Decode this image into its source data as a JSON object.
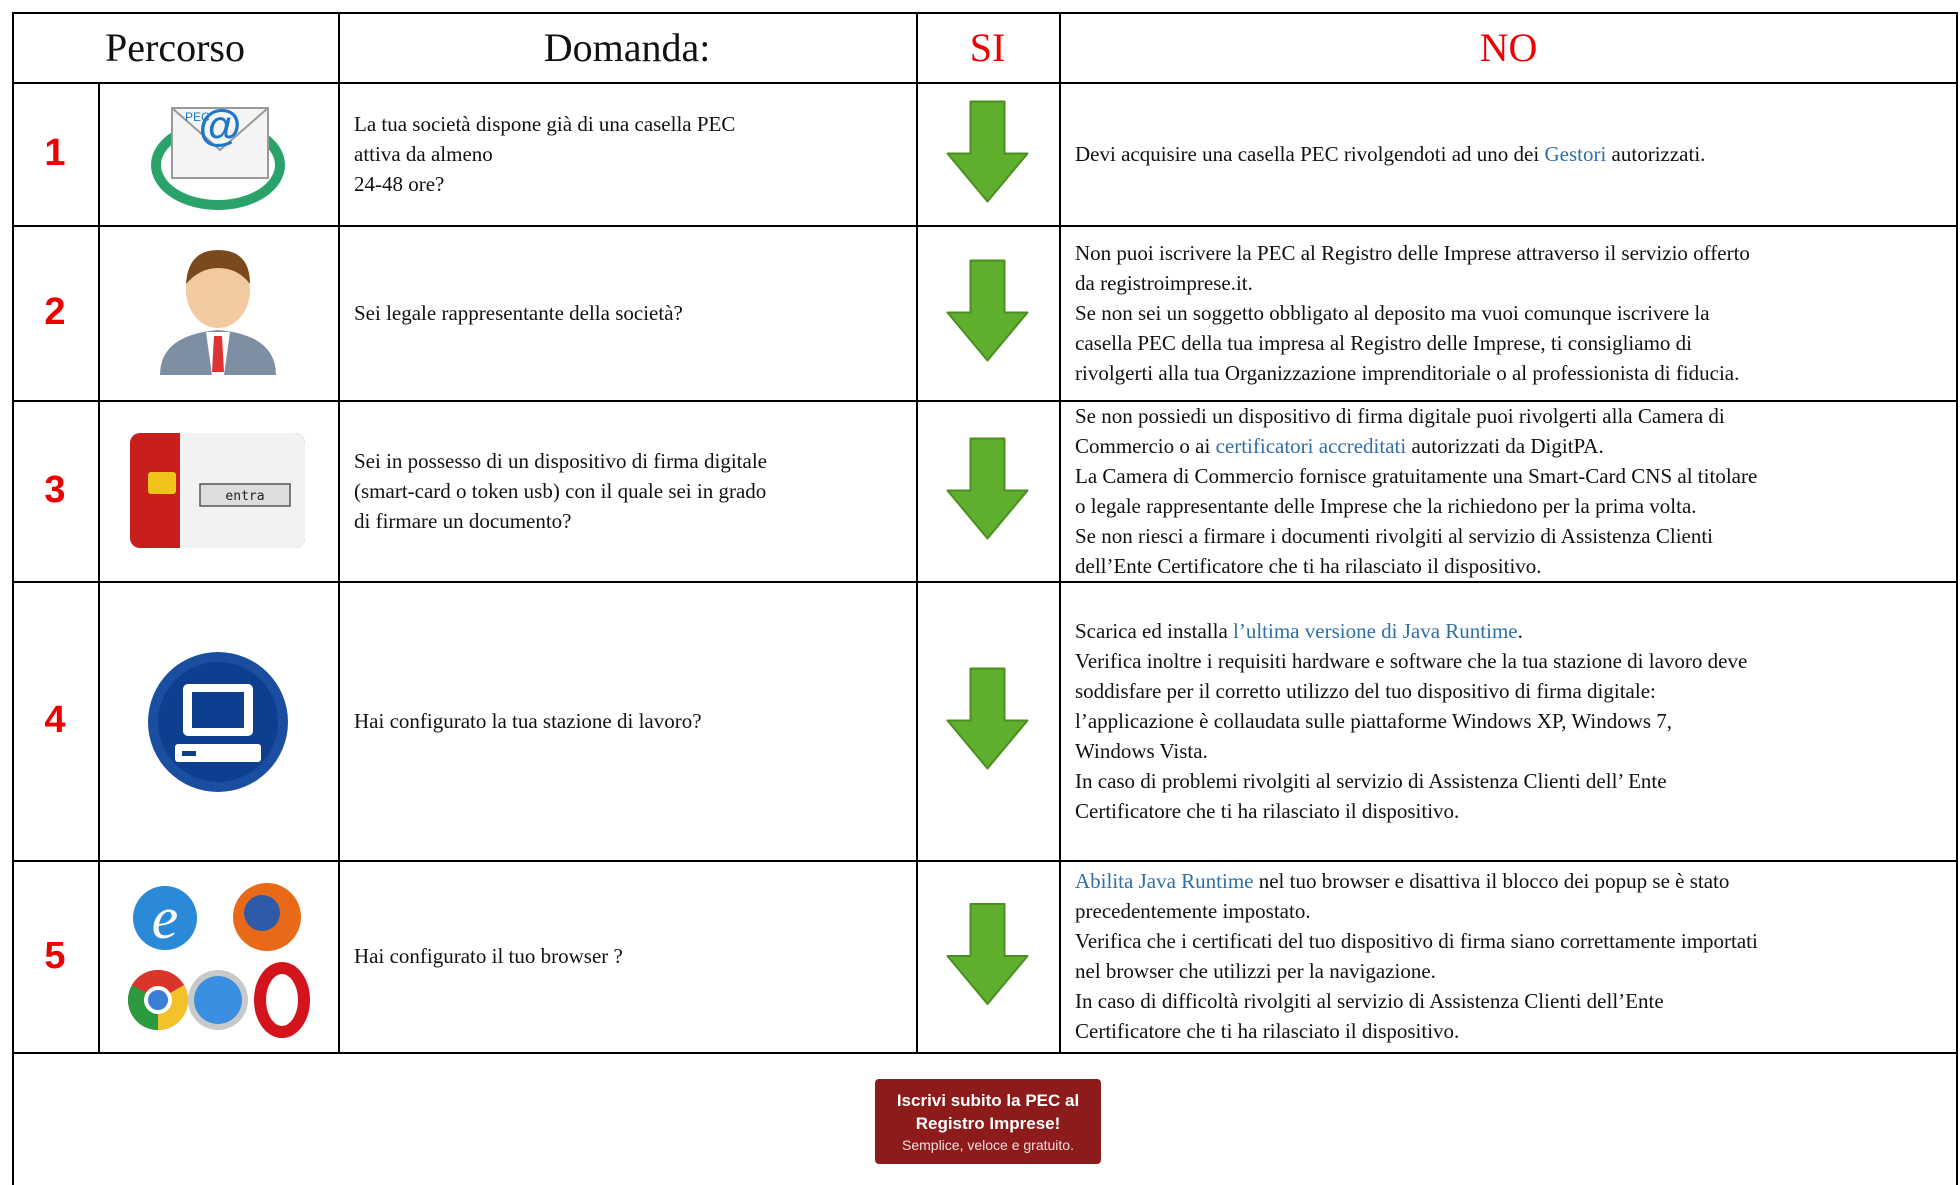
{
  "header": [
    "Percorso",
    "Domanda:",
    "SI",
    "NO"
  ],
  "rows": [
    {
      "number": "1",
      "question": [
        "La tua società dispone già di una casella PEC",
        "attiva da almeno",
        "24-48 ore?"
      ],
      "answer": [
        [
          {
            "text": "Devi acquisire una casella PEC rivolgendoti ad uno dei "
          },
          {
            "text": "Gestori",
            "link": true
          },
          {
            "text": " autorizzati."
          }
        ]
      ],
      "icon_label": "PEC"
    },
    {
      "number": "2",
      "question": [
        "Sei legale rappresentante della società?"
      ],
      "answer": [
        [
          {
            "text": "Non puoi iscrivere la PEC al Registro delle Imprese attraverso il servizio offerto"
          }
        ],
        [
          {
            "text": "da registroimprese.it."
          }
        ],
        [
          {
            "text": "Se non sei un soggetto obbligato al deposito ma vuoi comunque iscrivere la"
          }
        ],
        [
          {
            "text": "casella PEC della tua impresa al Registro delle Imprese, ti consigliamo di"
          }
        ],
        [
          {
            "text": "rivolgerti alla tua Organizzazione imprenditoriale o al professionista di fiducia."
          }
        ]
      ]
    },
    {
      "number": "3",
      "question": [
        "Sei in possesso di un dispositivo di firma digitale",
        "(smart-card o token usb) con il quale sei in grado",
        "di firmare un documento?"
      ],
      "answer": [
        [
          {
            "text": "Se non possiedi un dispositivo di firma digitale puoi rivolgerti alla Camera di"
          }
        ],
        [
          {
            "text": "Commercio o ai "
          },
          {
            "text": "certificatori accreditati",
            "link": true
          },
          {
            "text": " autorizzati da DigitPA."
          }
        ],
        [
          {
            "text": "La Camera di Commercio fornisce gratuitamente una Smart-Card CNS al titolare"
          }
        ],
        [
          {
            "text": "o legale rappresentante delle Imprese che la richiedono per la prima volta."
          }
        ],
        [
          {
            "text": "Se non riesci a firmare i documenti rivolgiti al servizio di Assistenza Clienti"
          }
        ],
        [
          {
            "text": "dell’Ente Certificatore che ti ha rilasciato il dispositivo."
          }
        ]
      ],
      "icon_label": "entra"
    },
    {
      "number": "4",
      "question": [
        "Hai configurato la tua stazione di lavoro?"
      ],
      "answer": [
        [
          {
            "text": "Scarica ed installa "
          },
          {
            "text": "l’ultima versione di Java Runtime",
            "link": true
          },
          {
            "text": "."
          }
        ],
        [
          {
            "text": "Verifica inoltre i requisiti hardware e software che la tua stazione di lavoro deve"
          }
        ],
        [
          {
            "text": "soddisfare per il corretto utilizzo del tuo dispositivo di firma digitale:"
          }
        ],
        [
          {
            "text": "l’applicazione è collaudata sulle piattaforme Windows XP, Windows 7,"
          }
        ],
        [
          {
            "text": "Windows Vista."
          }
        ],
        [
          {
            "text": "In caso di problemi rivolgiti al servizio di Assistenza Clienti dell’ Ente"
          }
        ],
        [
          {
            "text": "Certificatore che ti ha rilasciato il dispositivo."
          }
        ]
      ]
    },
    {
      "number": "5",
      "question": [
        "Hai configurato il tuo browser ?"
      ],
      "answer": [
        [
          {
            "text": "Abilita Java Runtime",
            "link": true
          },
          {
            "text": " nel tuo browser e disattiva il blocco dei popup se è stato"
          }
        ],
        [
          {
            "text": "precedentemente impostato."
          }
        ],
        [
          {
            "text": "Verifica che i certificati del tuo dispositivo di firma siano correttamente importati"
          }
        ],
        [
          {
            "text": "nel browser che utilizzi per la navigazione."
          }
        ],
        [
          {
            "text": "In caso di difficoltà rivolgiti al servizio di Assistenza Clienti dell’Ente"
          }
        ],
        [
          {
            "text": "Certificatore che ti ha rilasciato il dispositivo."
          }
        ]
      ]
    }
  ],
  "button": {
    "lines": [
      "Iscrivi subito la PEC al",
      "Registro Imprese!"
    ],
    "tagline": "Semplice, veloce e gratuito."
  }
}
